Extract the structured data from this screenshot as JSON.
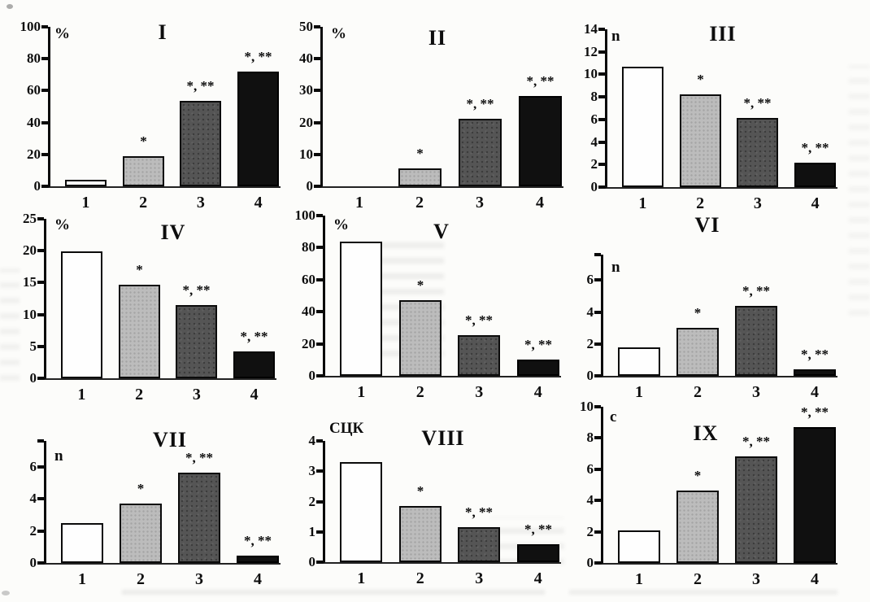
{
  "figure": {
    "kind": "scanned-multi-panel-bar-figure",
    "panels_count": 9
  },
  "chart_data": {
    "type": "bar",
    "categories": [
      "1",
      "2",
      "3",
      "4"
    ],
    "series_colors": [
      "#fefefe",
      "#bcbcbc",
      "#555555",
      "#101010"
    ],
    "annotation_marks": [
      "*",
      "*, **"
    ],
    "charts": [
      {
        "title": "I",
        "unit": "%",
        "ylim": [
          0,
          100
        ],
        "ticks": [
          0,
          20,
          40,
          60,
          80,
          100
        ],
        "extra_top_tick": false,
        "values": [
          4,
          19,
          53.5,
          72
        ],
        "annotations": [
          "",
          "*",
          "*, **",
          "*, **"
        ]
      },
      {
        "title": "II",
        "unit": "%",
        "ylim": [
          0,
          50
        ],
        "ticks": [
          0,
          10,
          20,
          30,
          40,
          50
        ],
        "extra_top_tick": false,
        "values": [
          0,
          5.6,
          21.2,
          28.3
        ],
        "annotations": [
          "",
          "*",
          "*, **",
          "*, **"
        ]
      },
      {
        "title": "III",
        "unit": "n",
        "ylim": [
          0,
          14
        ],
        "ticks": [
          0,
          2,
          4,
          6,
          8,
          10,
          12,
          14
        ],
        "extra_top_tick": false,
        "values": [
          10.7,
          8.2,
          6.1,
          2.2
        ],
        "annotations": [
          "",
          "*",
          "*, **",
          "*, **"
        ]
      },
      {
        "title": "IV",
        "unit": "%",
        "ylim": [
          0,
          25
        ],
        "ticks": [
          0,
          5,
          10,
          15,
          20,
          25
        ],
        "extra_top_tick": false,
        "values": [
          19.9,
          14.7,
          11.5,
          4.2
        ],
        "annotations": [
          "",
          "*",
          "*, **",
          "*, **"
        ]
      },
      {
        "title": "V",
        "unit": "%",
        "ylim": [
          0,
          100
        ],
        "ticks": [
          0,
          20,
          40,
          60,
          80,
          100
        ],
        "extra_top_tick": false,
        "values": [
          84,
          47,
          25.5,
          10
        ],
        "annotations": [
          "",
          "*",
          "*, **",
          "*, **"
        ]
      },
      {
        "title": "VI",
        "unit": "n",
        "ylim": [
          0,
          7.6
        ],
        "ticks": [
          0,
          2,
          4,
          6
        ],
        "extra_top_tick": true,
        "values": [
          1.8,
          3.0,
          4.4,
          0.4
        ],
        "annotations": [
          "",
          "*",
          "*, **",
          "*, **"
        ]
      },
      {
        "title": "VII",
        "unit": "n",
        "ylim": [
          0,
          7.6
        ],
        "ticks": [
          0,
          2,
          4,
          6
        ],
        "extra_top_tick": true,
        "values": [
          2.5,
          3.7,
          5.6,
          0.45
        ],
        "annotations": [
          "",
          "*",
          "*, **",
          "*, **"
        ]
      },
      {
        "title": "VIII",
        "unit": "СЦК",
        "ylim": [
          0,
          4
        ],
        "ticks": [
          0,
          1,
          2,
          3,
          4
        ],
        "extra_top_tick": false,
        "values": [
          3.3,
          1.85,
          1.15,
          0.6
        ],
        "annotations": [
          "",
          "*",
          "*, **",
          "*, **"
        ]
      },
      {
        "title": "IX",
        "unit": "с",
        "ylim": [
          0,
          10
        ],
        "ticks": [
          0,
          2,
          4,
          6,
          8,
          10
        ],
        "extra_top_tick": false,
        "values": [
          2.1,
          4.65,
          6.8,
          8.7
        ],
        "annotations": [
          "",
          "*",
          "*, **",
          "*, **"
        ]
      }
    ]
  }
}
